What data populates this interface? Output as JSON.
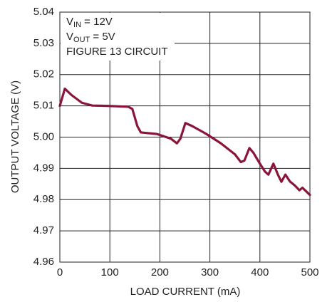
{
  "chart_data": {
    "type": "line",
    "xlabel": "LOAD CURRENT (mA)",
    "ylabel": "OUTPUT VOLTAGE (V)",
    "annotations": [
      {
        "text": "V",
        "sub": "IN",
        "rest": " = 12V"
      },
      {
        "text": "V",
        "sub": "OUT",
        "rest": " = 5V"
      },
      {
        "text": "FIGURE 13 CIRCUIT"
      }
    ],
    "x": [
      0,
      10,
      23,
      44,
      65,
      94,
      137,
      145,
      155,
      162,
      194,
      222,
      234,
      241,
      251,
      265,
      293,
      322,
      350,
      362,
      369,
      379,
      387,
      400,
      410,
      417,
      427,
      436,
      443,
      451,
      460,
      470,
      479,
      485,
      500
    ],
    "values": [
      5.01,
      5.0155,
      5.0135,
      5.011,
      5.0101,
      5.01,
      5.0097,
      5.009,
      5.0035,
      5.0015,
      5.001,
      4.9995,
      4.998,
      4.9995,
      5.0045,
      5.0035,
      5.001,
      4.998,
      4.9945,
      4.992,
      4.9925,
      4.9965,
      4.995,
      4.9915,
      4.989,
      4.988,
      4.9915,
      4.988,
      4.9857,
      4.988,
      4.9858,
      4.9845,
      4.983,
      4.9838,
      4.9815
    ],
    "color": "#8a1538",
    "xlim": [
      0,
      500
    ],
    "xticks": [
      0,
      100,
      200,
      300,
      400,
      500
    ],
    "ylim": [
      4.96,
      5.04
    ],
    "yticks": [
      4.96,
      4.97,
      4.98,
      4.99,
      {
        "value": 5,
        "label": "5.00"
      },
      5.01,
      5.02,
      5.03,
      5.04
    ],
    "grid": true
  }
}
